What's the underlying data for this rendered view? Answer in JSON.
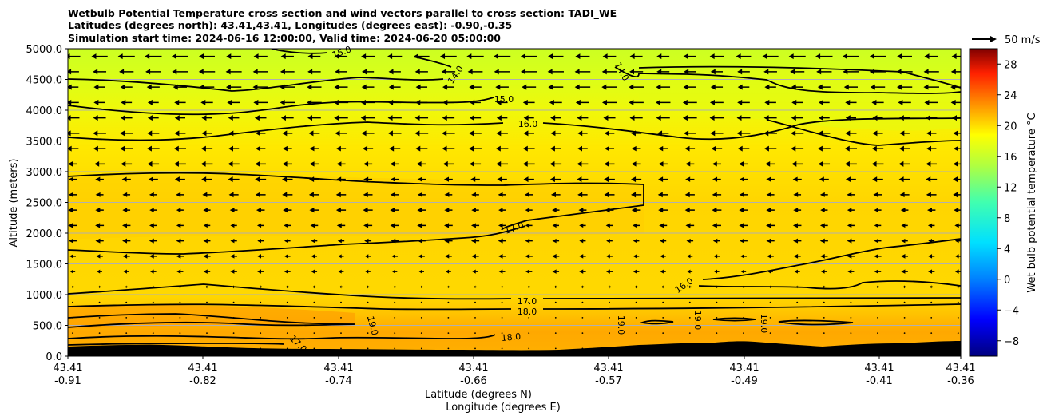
{
  "title": {
    "line1": "Wetbulb Potential Temperature cross section and wind vectors parallel to cross section: TADI_WE",
    "line2": "Latitudes (degrees north): 43.41,43.41, Longitudes (degrees east): -0.90,-0.35",
    "line3": "Simulation start time: 2024-06-16 12:00:00, Valid time: 2024-06-20 05:00:00"
  },
  "chart_data": {
    "type": "heatmap",
    "subtype": "cross-section filled contour with contour lines and wind vectors",
    "ylabel": "Altitude (meters)",
    "xlabel_line1": "Latitude (degrees N)",
    "xlabel_line2": "Longitude (degrees E)",
    "ylim": [
      0,
      5000
    ],
    "y_ticks": [
      "0.0",
      "500.0",
      "1000.0",
      "1500.0",
      "2000.0",
      "2500.0",
      "3000.0",
      "3500.0",
      "4000.0",
      "4500.0",
      "5000.0"
    ],
    "x_ticks": [
      {
        "lat": "43.41",
        "lon": "-0.91"
      },
      {
        "lat": "43.41",
        "lon": "-0.82"
      },
      {
        "lat": "43.41",
        "lon": "-0.74"
      },
      {
        "lat": "43.41",
        "lon": "-0.66"
      },
      {
        "lat": "43.41",
        "lon": "-0.57"
      },
      {
        "lat": "43.41",
        "lon": "-0.49"
      },
      {
        "lat": "43.41",
        "lon": "-0.41"
      },
      {
        "lat": "43.41",
        "lon": "-0.36"
      }
    ],
    "grid": "horizontal",
    "colorbar": {
      "label": "Wet bulb potential temperature °C",
      "range": [
        -10,
        30
      ],
      "ticks": [
        "−8",
        "−4",
        "0",
        "4",
        "8",
        "12",
        "16",
        "20",
        "24",
        "28"
      ]
    },
    "quiver_key": {
      "label": "50 m/s",
      "value": 50
    },
    "temperature_profile": [
      {
        "altitude": 0,
        "value": 19.5
      },
      {
        "altitude": 400,
        "value": 19.2
      },
      {
        "altitude": 700,
        "value": 18.4
      },
      {
        "altitude": 900,
        "value": 17.5
      },
      {
        "altitude": 1100,
        "value": 16.9
      },
      {
        "altitude": 2500,
        "value": 16.9
      },
      {
        "altitude": 3500,
        "value": 16.0
      },
      {
        "altitude": 4200,
        "value": 15.0
      },
      {
        "altitude": 4700,
        "value": 14.2
      },
      {
        "altitude": 5000,
        "value": 13.9
      }
    ],
    "contour_labels": [
      "15.0",
      "14.0",
      "14.0",
      "15.0",
      "16.0",
      "17.0",
      "16.0",
      "17.0",
      "18.0",
      "19.0",
      "18.0",
      "17.0",
      "19.0",
      "19.0",
      "19.0"
    ],
    "wind": {
      "direction": "westward (negative along section)",
      "max_speed_ms": 10,
      "min_speed_ms": 0
    }
  }
}
